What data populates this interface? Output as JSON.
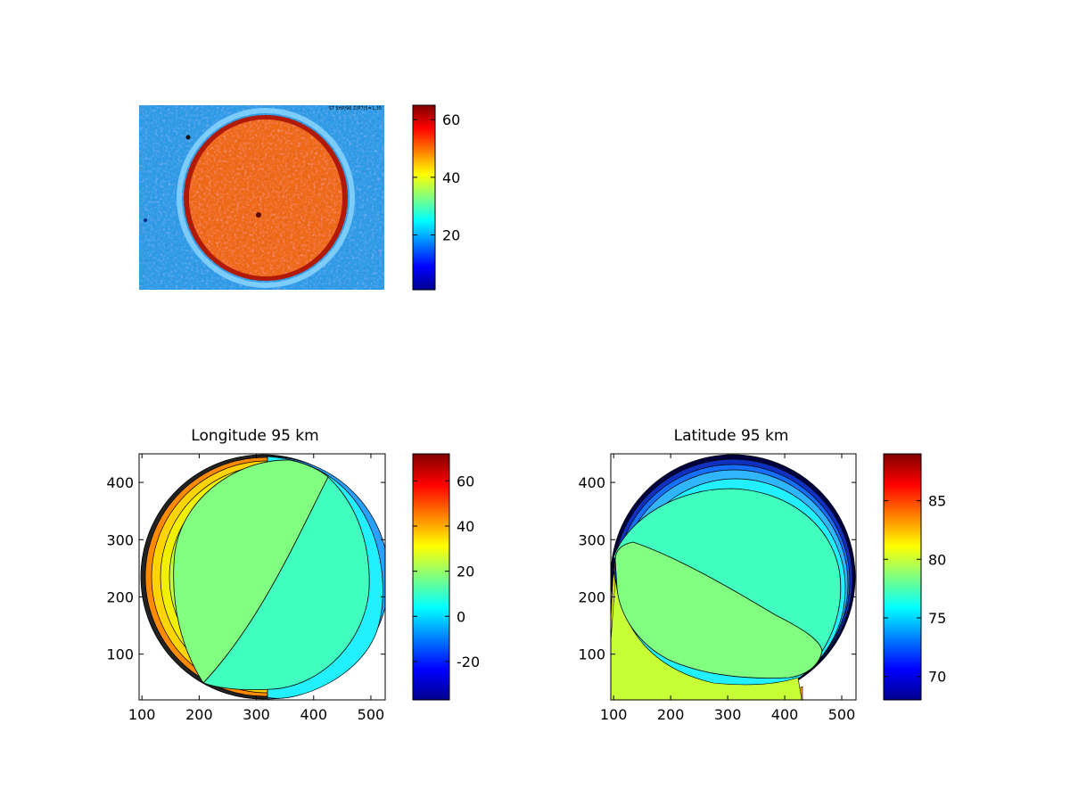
{
  "colormap": "jet",
  "image_panel": {
    "chart_type": "heatmap",
    "image_stamp": "ST 5HP/96 Z(P7)5=1,35",
    "colorbar": {
      "range": [
        1,
        65
      ],
      "ticks": [
        20,
        40,
        60
      ]
    }
  },
  "chart_data": [
    {
      "type": "heatmap",
      "title": "",
      "xlabel": "",
      "ylabel": "",
      "colorbar": {
        "range": [
          1,
          65
        ],
        "ticks": [
          20,
          40,
          60
        ]
      },
      "description_values": {
        "background_level": 25,
        "disk_level": 55
      }
    },
    {
      "type": "contourf",
      "title": "Longitude 95 km",
      "xlabel": "",
      "ylabel": "",
      "xlim": [
        95,
        525
      ],
      "ylim": [
        20,
        450
      ],
      "xticks": [
        100,
        200,
        300,
        400,
        500
      ],
      "yticks": [
        100,
        200,
        300,
        400
      ],
      "disk": {
        "cx": 295,
        "cy": 235,
        "r": 213
      },
      "colorbar": {
        "range": [
          -37,
          72
        ],
        "ticks": [
          -20,
          0,
          20,
          40,
          60
        ]
      },
      "levels": [
        0,
        5,
        10,
        15,
        20,
        25,
        30,
        35,
        40
      ]
    },
    {
      "type": "contourf",
      "title": "Latitude 95 km",
      "xlabel": "",
      "ylabel": "",
      "xlim": [
        95,
        525
      ],
      "ylim": [
        20,
        450
      ],
      "xticks": [
        100,
        200,
        300,
        400,
        500
      ],
      "yticks": [
        100,
        200,
        300,
        400
      ],
      "disk": {
        "cx": 322,
        "cy": 235,
        "r": 213
      },
      "colorbar": {
        "range": [
          68,
          89
        ],
        "ticks": [
          70,
          75,
          80,
          85
        ]
      },
      "levels": [
        72,
        73,
        74,
        75,
        76,
        77,
        78,
        79,
        80
      ]
    }
  ]
}
